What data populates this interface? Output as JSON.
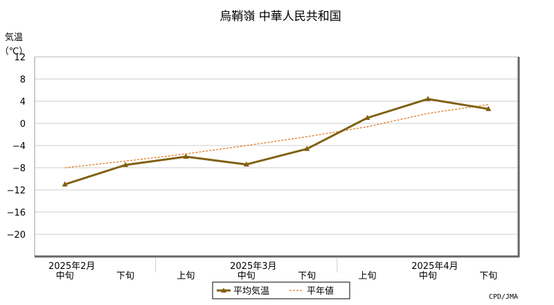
{
  "chart_data": {
    "type": "line",
    "title": "烏鞘嶺 中華人民共和国",
    "ylabel_line1": "気温",
    "ylabel_line2": "（℃）",
    "ylim": [
      -24,
      12
    ],
    "yticks": [
      12,
      8,
      4,
      0,
      -4,
      -8,
      -12,
      -16,
      -20
    ],
    "ytick_labels": [
      "12",
      "8",
      "4",
      "0",
      "−4",
      "−8",
      "−12",
      "−16",
      "−20"
    ],
    "grid": true,
    "categories": [
      "中旬",
      "下旬",
      "上旬",
      "中旬",
      "下旬",
      "上旬",
      "中旬",
      "下旬"
    ],
    "month_labels": [
      {
        "label": "2025年2月",
        "index": 0
      },
      {
        "label": "2025年3月",
        "index": 3
      },
      {
        "label": "2025年4月",
        "index": 6
      }
    ],
    "series": [
      {
        "name": "平均気温",
        "values": [
          -11.0,
          -7.5,
          -6.0,
          -7.4,
          -4.6,
          1.0,
          4.4,
          2.6
        ],
        "color": "#806010"
      },
      {
        "name": "平年値",
        "values": [
          -8.0,
          -6.8,
          -5.5,
          -4.0,
          -2.4,
          -0.6,
          1.8,
          3.4
        ],
        "color": "#e07820"
      }
    ],
    "legend_position": "bottom-center",
    "source": "CPD/JMA"
  }
}
